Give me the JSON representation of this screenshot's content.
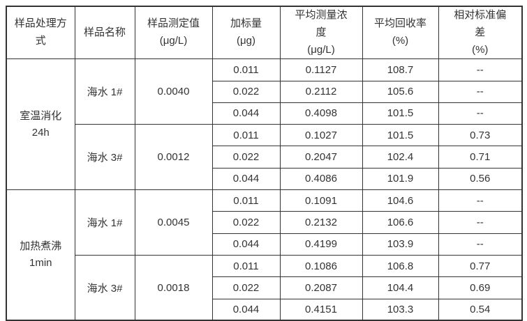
{
  "table": {
    "border_color": "#333333",
    "text_color": "#333333",
    "columns": [
      {
        "label": "样品处理方式",
        "unit": ""
      },
      {
        "label": "样品名称",
        "unit": ""
      },
      {
        "label": "样品测定值",
        "unit": "(μg/L)"
      },
      {
        "label": "加标量",
        "unit": "(μg)"
      },
      {
        "label": "平均测量浓度",
        "unit": "(μg/L)"
      },
      {
        "label": "平均回收率",
        "unit": "(%)"
      },
      {
        "label": "相对标准偏差",
        "unit": "(%)"
      }
    ],
    "groups": [
      {
        "treatment": "室温消化\n24h",
        "samples": [
          {
            "name": "海水 1#",
            "measured": "0.0040",
            "rows": [
              {
                "spike": "0.011",
                "avg_conc": "0.1127",
                "recovery": "108.7",
                "rsd": "--"
              },
              {
                "spike": "0.022",
                "avg_conc": "0.2112",
                "recovery": "105.6",
                "rsd": "--"
              },
              {
                "spike": "0.044",
                "avg_conc": "0.4098",
                "recovery": "101.5",
                "rsd": "--"
              }
            ]
          },
          {
            "name": "海水 3#",
            "measured": "0.0012",
            "rows": [
              {
                "spike": "0.011",
                "avg_conc": "0.1027",
                "recovery": "101.5",
                "rsd": "0.73"
              },
              {
                "spike": "0.022",
                "avg_conc": "0.2047",
                "recovery": "102.4",
                "rsd": "0.71"
              },
              {
                "spike": "0.044",
                "avg_conc": "0.4086",
                "recovery": "101.9",
                "rsd": "0.56"
              }
            ]
          }
        ]
      },
      {
        "treatment": "加热煮沸\n1min",
        "samples": [
          {
            "name": "海水 1#",
            "measured": "0.0045",
            "rows": [
              {
                "spike": "0.011",
                "avg_conc": "0.1091",
                "recovery": "104.6",
                "rsd": "--"
              },
              {
                "spike": "0.022",
                "avg_conc": "0.2132",
                "recovery": "106.6",
                "rsd": "--"
              },
              {
                "spike": "0.044",
                "avg_conc": "0.4199",
                "recovery": "103.9",
                "rsd": "--"
              }
            ]
          },
          {
            "name": "海水 3#",
            "measured": "0.0018",
            "rows": [
              {
                "spike": "0.011",
                "avg_conc": "0.1086",
                "recovery": "106.8",
                "rsd": "0.77"
              },
              {
                "spike": "0.022",
                "avg_conc": "0.2087",
                "recovery": "104.4",
                "rsd": "0.69"
              },
              {
                "spike": "0.044",
                "avg_conc": "0.4151",
                "recovery": "103.3",
                "rsd": "0.54"
              }
            ]
          }
        ]
      }
    ]
  }
}
